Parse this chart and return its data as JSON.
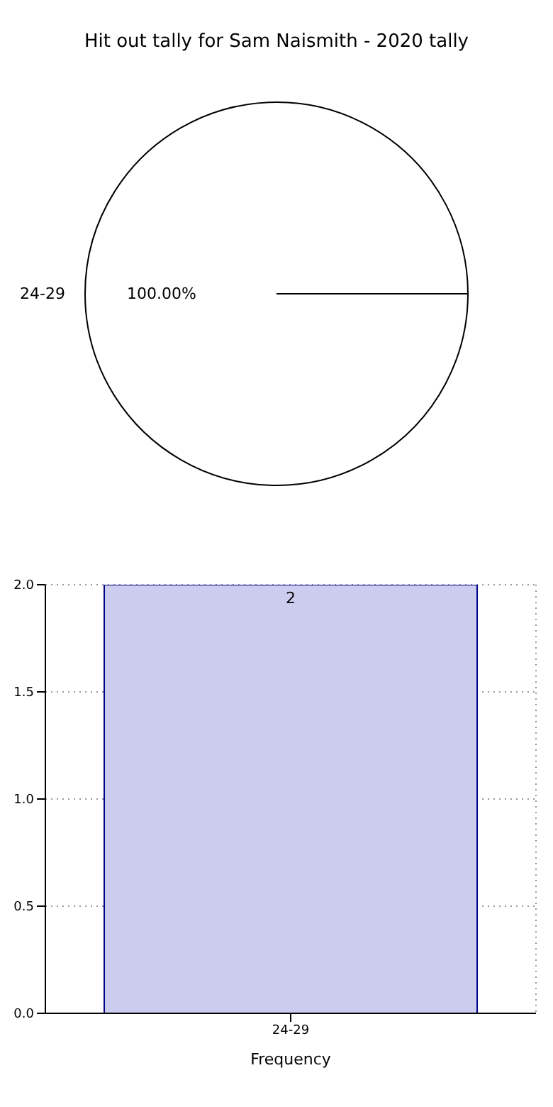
{
  "chart_data": [
    {
      "type": "pie",
      "title": "Hit out tally for Sam Naismith - 2020 tally",
      "categories": [
        "24-29"
      ],
      "values": [
        100
      ],
      "value_labels": [
        "100.00%"
      ],
      "colors": [
        "#ffffff"
      ]
    },
    {
      "type": "bar",
      "xlabel": "Frequency",
      "categories": [
        "24-29"
      ],
      "values": [
        2
      ],
      "color": "#ccccee",
      "data_labels": true,
      "grid": true,
      "ylim": [
        0,
        2
      ],
      "yticks": [
        {
          "value": 0,
          "label": "0.0"
        },
        {
          "value": 0.5,
          "label": "0.5"
        },
        {
          "value": 1,
          "label": "1.0"
        },
        {
          "value": 1.5,
          "label": "1.5"
        },
        {
          "value": 2,
          "label": "2.0"
        }
      ]
    }
  ]
}
